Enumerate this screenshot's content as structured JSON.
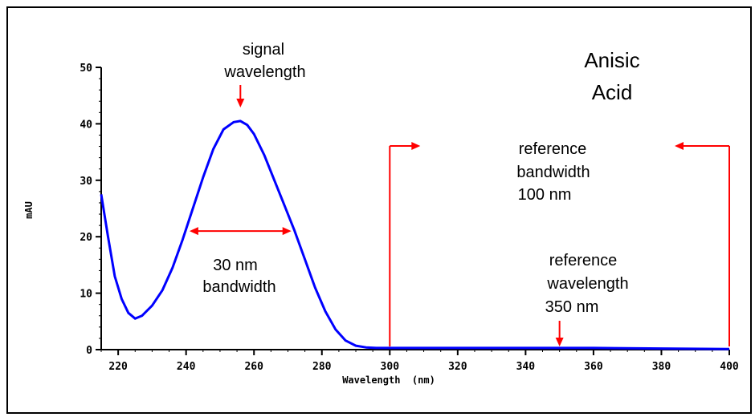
{
  "chart_data": {
    "type": "line",
    "xlabel": "Wavelength  (nm)",
    "ylabel": "mAU",
    "xlim": [
      215,
      400
    ],
    "ylim": [
      0,
      50
    ],
    "x_ticks": [
      220,
      240,
      260,
      280,
      300,
      320,
      340,
      360,
      380,
      400
    ],
    "y_ticks": [
      0,
      10,
      20,
      30,
      40,
      50
    ],
    "grid": false,
    "series": [
      {
        "color": "#0000ff",
        "x": [
          215,
          217,
          219,
          221,
          223,
          225,
          227,
          230,
          233,
          236,
          239,
          242,
          245,
          248,
          251,
          254,
          256,
          258,
          260,
          263,
          266,
          269,
          272,
          275,
          278,
          281,
          284,
          287,
          290,
          293,
          296,
          300,
          320,
          340,
          360,
          380,
          400
        ],
        "y": [
          27.5,
          20,
          13,
          9,
          6.5,
          5.5,
          6,
          7.8,
          10.5,
          14.5,
          19.5,
          25,
          30.5,
          35.5,
          39,
          40.3,
          40.5,
          39.8,
          38.2,
          34.5,
          30,
          25.5,
          21,
          16,
          11,
          6.8,
          3.6,
          1.6,
          0.7,
          0.4,
          0.3,
          0.3,
          0.3,
          0.3,
          0.3,
          0.2,
          0.1
        ]
      }
    ],
    "annotations": {
      "title_lines": [
        "Anisic",
        "Acid"
      ],
      "signal_lines": [
        "signal",
        "wavelength"
      ],
      "bandwidth_lines": [
        "30 nm",
        "bandwidth"
      ],
      "ref_bandwidth_lines": [
        "reference",
        "bandwidth",
        "100 nm"
      ],
      "ref_wavelength_lines": [
        "reference",
        "wavelength",
        "350 nm"
      ],
      "signal_wavelength": 256,
      "bandwidth_range": [
        241,
        271
      ],
      "bandwidth_level": 21,
      "reference_range": [
        300,
        400
      ],
      "reference_wavelength": 350,
      "arrow_color": "#ff0000"
    }
  }
}
